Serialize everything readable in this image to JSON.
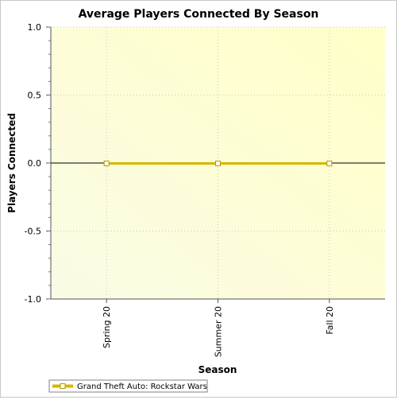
{
  "chart_data": {
    "type": "line",
    "title": "Average Players Connected By Season",
    "xlabel": "Season",
    "ylabel": "Players Connected",
    "categories": [
      "Spring 20",
      "Summer 20",
      "Fall 20"
    ],
    "series": [
      {
        "name": "Grand Theft Auto: Rockstar Wars",
        "values": [
          0,
          0,
          0
        ],
        "color": "#d4b800"
      }
    ],
    "ylim": [
      -1.0,
      1.0
    ],
    "yticks": [
      "1.0",
      "0.5",
      "0.0",
      "-0.5",
      "-1.0"
    ],
    "grid": true,
    "legend": "bottom-left"
  }
}
